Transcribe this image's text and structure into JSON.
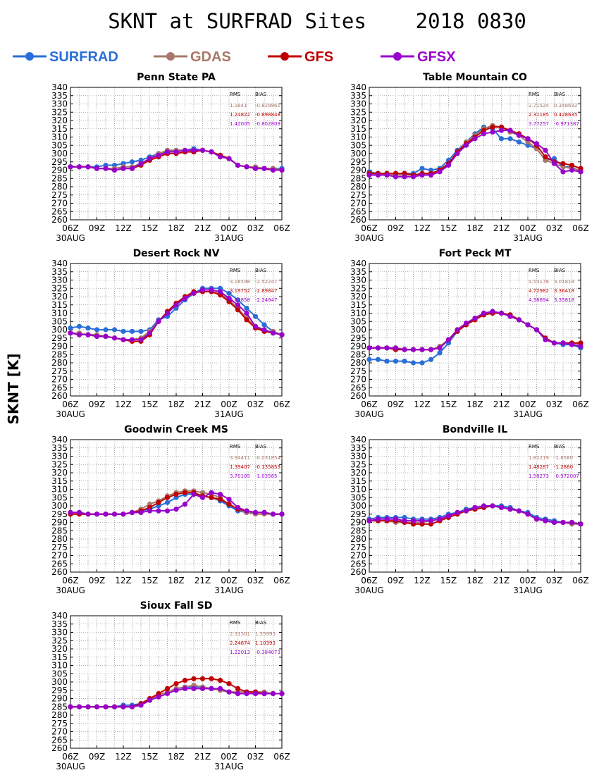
{
  "header": {
    "title": "SKNT at SURFRAD Sites    2018 0830"
  },
  "ylabel": "SKNT [K]",
  "colors": {
    "SURFRAD": "#2a6ed8",
    "GDAS": "#a8786a",
    "GFS": "#c00000",
    "GFSX": "#9900cc"
  },
  "chart_data": {
    "type": "line",
    "xticks": [
      "06Z",
      "09Z",
      "12Z",
      "15Z",
      "18Z",
      "21Z",
      "00Z",
      "03Z",
      "06Z"
    ],
    "xdates": [
      "30AUG",
      "31AUG"
    ],
    "yticks": [
      260,
      265,
      270,
      275,
      280,
      285,
      290,
      295,
      300,
      305,
      310,
      315,
      320,
      325,
      330,
      335,
      340
    ],
    "ylim": [
      260,
      340
    ],
    "grid": true,
    "legend": [
      "SURFRAD",
      "GDAS",
      "GFS",
      "GFSX"
    ],
    "stats_header": {
      "rms": "RMS",
      "bias": "BIAS"
    },
    "panels": [
      {
        "title": "Penn State PA",
        "stats": [
          {
            "series": "GDAS",
            "rms": "1.1841",
            "bias": "-0.828861"
          },
          {
            "series": "GFS",
            "rms": "1.24822",
            "bias": "-0.898848"
          },
          {
            "series": "GFSX",
            "rms": "1.42005",
            "bias": "-0.802809"
          }
        ],
        "series": [
          {
            "name": "SURFRAD",
            "values": [
              292,
              292,
              292,
              292,
              293,
              293,
              294,
              295,
              296,
              298,
              300,
              301,
              302,
              302,
              303,
              302,
              301,
              299,
              297,
              293,
              292,
              291,
              291,
              291,
              291
            ]
          },
          {
            "name": "GDAS",
            "values": [
              292,
              292,
              292,
              291,
              291,
              291,
              292,
              292,
              294,
              297,
              300,
              302,
              302,
              302,
              302,
              302,
              301,
              299,
              297,
              293,
              292,
              292,
              291,
              291,
              290
            ]
          },
          {
            "name": "GFS",
            "values": [
              292,
              292,
              292,
              291,
              291,
              290,
              291,
              291,
              293,
              296,
              298,
              300,
              300,
              301,
              301,
              302,
              301,
              299,
              297,
              293,
              292,
              291,
              291,
              290,
              290
            ]
          },
          {
            "name": "GFSX",
            "values": [
              292,
              292,
              292,
              291,
              291,
              290,
              291,
              291,
              294,
              297,
              299,
              301,
              301,
              302,
              302,
              302,
              301,
              298,
              297,
              293,
              292,
              291,
              291,
              290,
              290
            ]
          }
        ]
      },
      {
        "title": "Table Mountain CO",
        "stats": [
          {
            "series": "GDAS",
            "rms": "2.71524",
            "bias": "0.348632"
          },
          {
            "series": "GFS",
            "rms": "2.31185",
            "bias": "0.428635"
          },
          {
            "series": "GFSX",
            "rms": "3.77257",
            "bias": "-0.971387"
          }
        ],
        "series": [
          {
            "name": "SURFRAD",
            "values": [
              289,
              288,
              288,
              288,
              288,
              288,
              291,
              290,
              291,
              296,
              302,
              307,
              312,
              316,
              315,
              309,
              309,
              307,
              305,
              303,
              296,
              297,
              292,
              292,
              289
            ]
          },
          {
            "name": "GDAS",
            "values": [
              288,
              288,
              288,
              287,
              287,
              287,
              288,
              288,
              290,
              294,
              301,
              307,
              311,
              315,
              317,
              316,
              313,
              311,
              307,
              303,
              296,
              294,
              292,
              291,
              290
            ]
          },
          {
            "name": "GFS",
            "values": [
              288,
              288,
              288,
              288,
              288,
              287,
              288,
              288,
              290,
              294,
              301,
              306,
              310,
              314,
              316,
              316,
              314,
              312,
              309,
              305,
              298,
              295,
              294,
              293,
              291
            ]
          },
          {
            "name": "GFSX",
            "values": [
              287,
              287,
              287,
              286,
              286,
              286,
              287,
              287,
              289,
              293,
              300,
              305,
              309,
              312,
              313,
              314,
              314,
              311,
              309,
              306,
              302,
              294,
              289,
              290,
              289
            ]
          }
        ]
      },
      {
        "title": "Desert Rock NV",
        "stats": [
          {
            "series": "GDAS",
            "rms": "3.18598",
            "bias": "-2.52247"
          },
          {
            "series": "GFS",
            "rms": "3.19752",
            "bias": "-2.89847"
          },
          {
            "series": "GFSX",
            "rms": "2.41858",
            "bias": "-2.24847"
          }
        ],
        "series": [
          {
            "name": "SURFRAD",
            "values": [
              301,
              302,
              301,
              300,
              300,
              300,
              299,
              299,
              299,
              300,
              306,
              308,
              313,
              318,
              322,
              325,
              325,
              325,
              322,
              318,
              313,
              308,
              303,
              299,
              297
            ]
          },
          {
            "name": "GDAS",
            "values": [
              298,
              298,
              297,
              297,
              296,
              295,
              294,
              294,
              295,
              299,
              305,
              311,
              316,
              320,
              322,
              323,
              323,
              322,
              318,
              313,
              307,
              302,
              299,
              299,
              297
            ]
          },
          {
            "name": "GFS",
            "values": [
              298,
              297,
              297,
              296,
              296,
              295,
              294,
              293,
              293,
              297,
              305,
              311,
              316,
              320,
              323,
              323,
              323,
              321,
              317,
              312,
              306,
              301,
              299,
              298,
              297
            ]
          },
          {
            "name": "GFSX",
            "values": [
              298,
              297,
              297,
              296,
              296,
              295,
              294,
              294,
              294,
              298,
              305,
              310,
              315,
              319,
              322,
              324,
              324,
              323,
              319,
              315,
              310,
              302,
              300,
              298,
              297
            ]
          }
        ]
      },
      {
        "title": "Fort Peck MT",
        "stats": [
          {
            "series": "GDAS",
            "rms": "4.53178",
            "bias": "3.01818"
          },
          {
            "series": "GFS",
            "rms": "4.72982",
            "bias": "3.36418"
          },
          {
            "series": "GFSX",
            "rms": "4.38894",
            "bias": "3.35818"
          }
        ],
        "series": [
          {
            "name": "SURFRAD",
            "values": [
              282,
              282,
              281,
              281,
              281,
              280,
              280,
              282,
              286,
              292,
              299,
              303,
              307,
              310,
              311,
              310,
              309,
              306,
              303,
              300,
              294,
              292,
              291,
              291,
              289
            ]
          },
          {
            "name": "GDAS",
            "values": [
              289,
              289,
              289,
              289,
              288,
              288,
              288,
              288,
              290,
              294,
              300,
              304,
              307,
              309,
              310,
              310,
              308,
              306,
              303,
              300,
              294,
              292,
              292,
              292,
              291
            ]
          },
          {
            "name": "GFS",
            "values": [
              289,
              289,
              289,
              288,
              288,
              288,
              288,
              288,
              289,
              294,
              299,
              303,
              306,
              309,
              310,
              310,
              309,
              306,
              303,
              300,
              295,
              292,
              292,
              292,
              292
            ]
          },
          {
            "name": "GFSX",
            "values": [
              289,
              289,
              289,
              289,
              288,
              288,
              288,
              288,
              289,
              294,
              300,
              304,
              307,
              310,
              311,
              310,
              308,
              306,
              303,
              300,
              294,
              292,
              292,
              291,
              290
            ]
          }
        ]
      },
      {
        "title": "Goodwin Creek MS",
        "stats": [
          {
            "series": "GDAS",
            "rms": "3.94411",
            "bias": "-0.0318547"
          },
          {
            "series": "GFS",
            "rms": "1.39407",
            "bias": "-0.135853"
          },
          {
            "series": "GFSX",
            "rms": "3.70105",
            "bias": "-1.03585"
          }
        ],
        "series": [
          {
            "name": "SURFRAD",
            "values": [
              296,
              296,
              295,
              295,
              295,
              295,
              295,
              296,
              297,
              298,
              300,
              302,
              305,
              307,
              307,
              306,
              305,
              303,
              300,
              297,
              296,
              296,
              296,
              295,
              295
            ]
          },
          {
            "name": "GDAS",
            "values": [
              295,
              295,
              295,
              295,
              295,
              295,
              295,
              296,
              298,
              301,
              303,
              306,
              308,
              309,
              309,
              308,
              307,
              305,
              301,
              298,
              296,
              295,
              295,
              295,
              295
            ]
          },
          {
            "name": "GFS",
            "values": [
              295,
              295,
              295,
              295,
              295,
              295,
              295,
              296,
              297,
              299,
              302,
              305,
              307,
              308,
              308,
              306,
              305,
              304,
              301,
              298,
              297,
              296,
              296,
              295,
              295
            ]
          },
          {
            "name": "GFSX",
            "values": [
              296,
              296,
              295,
              295,
              295,
              295,
              295,
              296,
              296,
              297,
              297,
              297,
              298,
              301,
              307,
              305,
              308,
              307,
              304,
              299,
              297,
              296,
              296,
              295,
              295
            ]
          }
        ]
      },
      {
        "title": "Bondville IL",
        "stats": [
          {
            "series": "GDAS",
            "rms": "1.82219",
            "bias": "-1.6580"
          },
          {
            "series": "GFS",
            "rms": "1.48287",
            "bias": "-1.2880"
          },
          {
            "series": "GFSX",
            "rms": "1.58273",
            "bias": "-0.972007"
          }
        ],
        "series": [
          {
            "name": "SURFRAD",
            "values": [
              292,
              293,
              293,
              293,
              293,
              292,
              292,
              292,
              293,
              295,
              296,
              298,
              299,
              300,
              300,
              300,
              299,
              297,
              296,
              293,
              292,
              291,
              290,
              290,
              289
            ]
          },
          {
            "name": "GDAS",
            "values": [
              291,
              291,
              291,
              290,
              290,
              290,
              290,
              291,
              292,
              294,
              295,
              297,
              298,
              299,
              300,
              299,
              298,
              297,
              295,
              292,
              291,
              290,
              290,
              289,
              289
            ]
          },
          {
            "name": "GFS",
            "values": [
              291,
              291,
              291,
              291,
              290,
              289,
              289,
              289,
              291,
              293,
              295,
              297,
              298,
              299,
              300,
              299,
              298,
              297,
              295,
              292,
              291,
              290,
              290,
              290,
              289
            ]
          },
          {
            "name": "GFSX",
            "values": [
              291,
              292,
              292,
              292,
              291,
              291,
              291,
              291,
              292,
              294,
              296,
              297,
              299,
              300,
              300,
              299,
              298,
              297,
              295,
              292,
              291,
              290,
              290,
              290,
              289
            ]
          }
        ]
      },
      {
        "title": "Sioux Fall SD",
        "stats": [
          {
            "series": "GDAS",
            "rms": "2.31501",
            "bias": "1.55993"
          },
          {
            "series": "GFS",
            "rms": "2.24874",
            "bias": "1.10393"
          },
          {
            "series": "GFSX",
            "rms": "1.22013",
            "bias": "-0.384073"
          }
        ],
        "series": [
          {
            "name": "SURFRAD",
            "values": [
              285,
              285,
              285,
              285,
              285,
              285,
              286,
              286,
              287,
              289,
              292,
              294,
              296,
              297,
              297,
              297,
              296,
              295,
              294,
              293,
              293,
              293,
              293,
              293,
              293
            ]
          },
          {
            "name": "GDAS",
            "values": [
              285,
              285,
              285,
              285,
              285,
              285,
              285,
              285,
              286,
              289,
              292,
              294,
              296,
              297,
              298,
              297,
              296,
              295,
              294,
              294,
              294,
              294,
              294,
              293,
              293
            ]
          },
          {
            "name": "GFS",
            "values": [
              285,
              285,
              285,
              285,
              285,
              285,
              285,
              285,
              287,
              290,
              293,
              296,
              299,
              301,
              302,
              302,
              302,
              301,
              299,
              296,
              294,
              294,
              293,
              293,
              293
            ]
          },
          {
            "name": "GFSX",
            "values": [
              285,
              285,
              285,
              285,
              285,
              285,
              285,
              285,
              286,
              289,
              291,
              293,
              295,
              296,
              296,
              296,
              296,
              296,
              294,
              293,
              293,
              293,
              293,
              293,
              293
            ]
          }
        ]
      }
    ]
  }
}
